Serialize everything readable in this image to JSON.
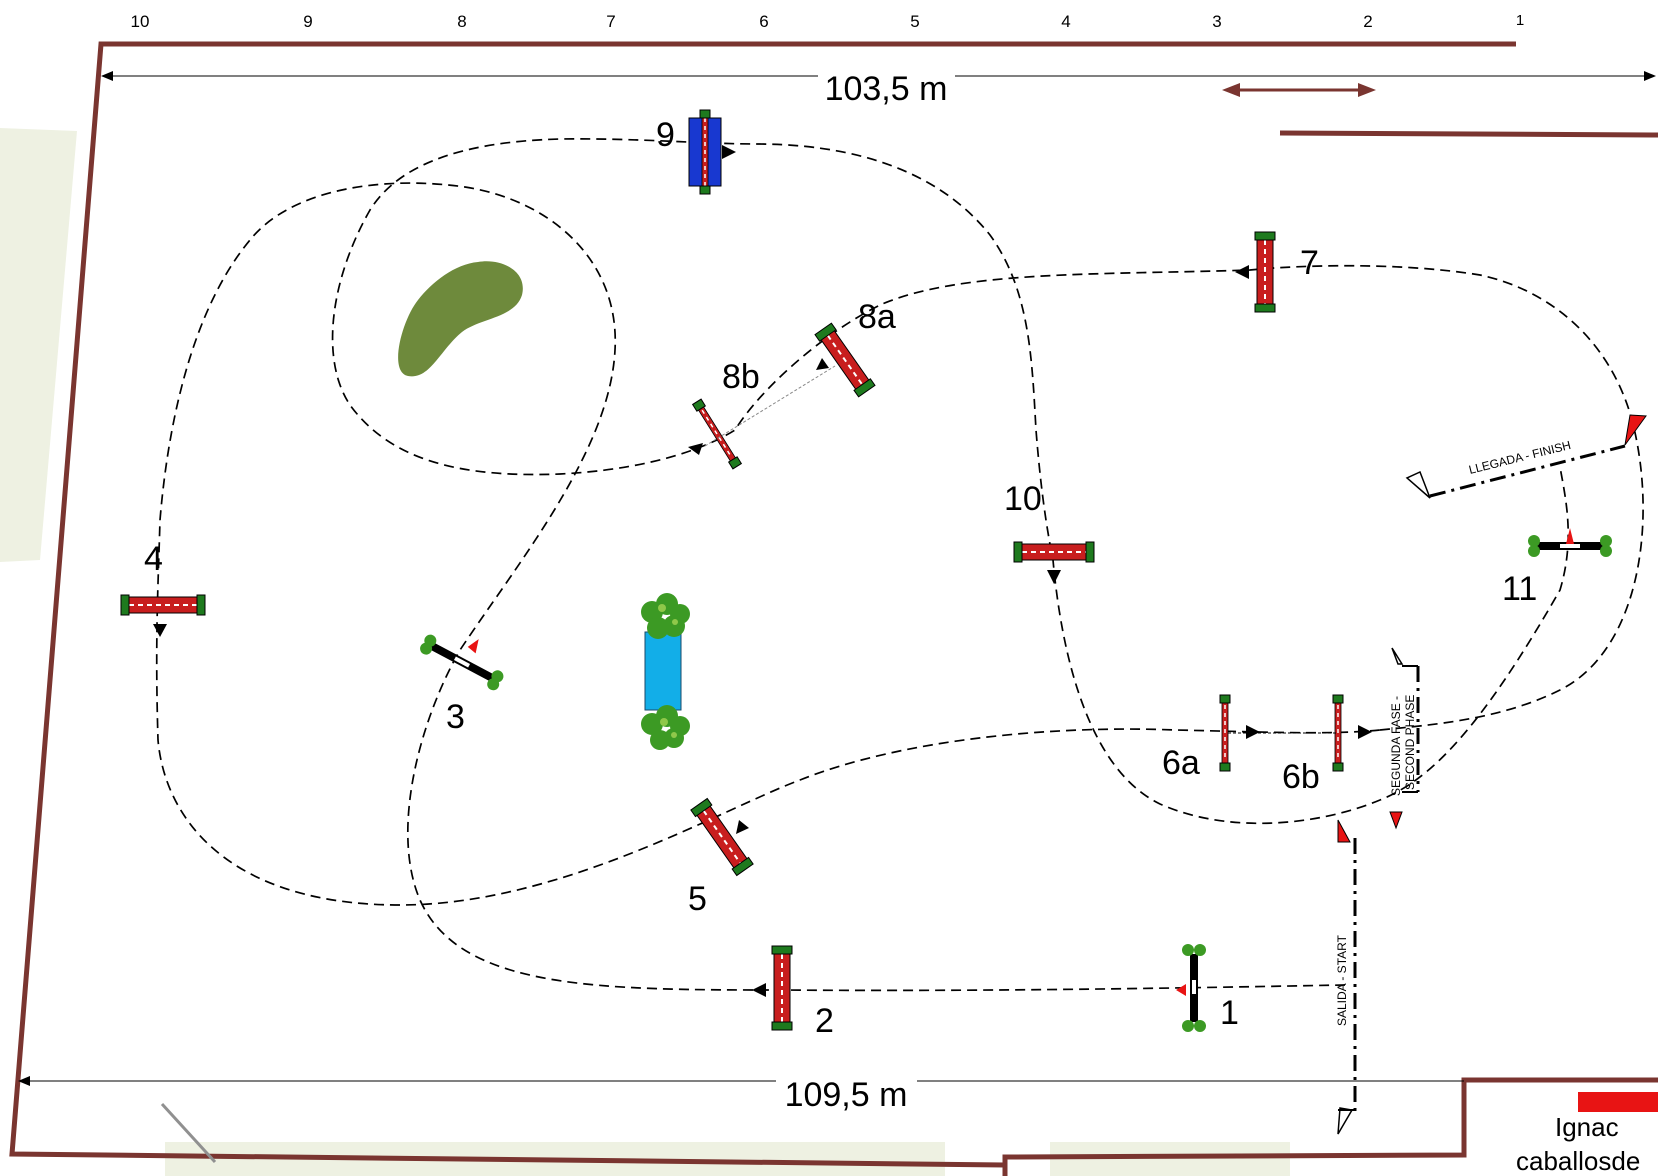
{
  "ruler": {
    "marks": [
      "10",
      "9",
      "8",
      "7",
      "6",
      "5",
      "4",
      "3",
      "2",
      "1"
    ]
  },
  "dimensions": {
    "top": "103,5 m",
    "bottom": "109,5 m"
  },
  "obstacles": [
    "1",
    "2",
    "3",
    "4",
    "5",
    "6a",
    "6b",
    "7",
    "8a",
    "8b",
    "9",
    "10",
    "11"
  ],
  "lines": {
    "start": "SALIDA - START",
    "finish": "LLEGADA - FINISH",
    "second_phase_line1": "SEGUNDA FASE -",
    "second_phase_line2": "SECOND PHASE"
  },
  "designer_label": {
    "line1": "Ignac",
    "line2": "caballosde"
  },
  "colors": {
    "boundary": "#7a3530",
    "tree": "#6e8a3c",
    "water": "#12aee8",
    "wall": "#1838d0",
    "bush": "#3c9a24",
    "flag_red": "#e81414",
    "mat": "#eef1e2",
    "rail_red": "#c81e1e",
    "stand_green": "#1e7a1e"
  }
}
